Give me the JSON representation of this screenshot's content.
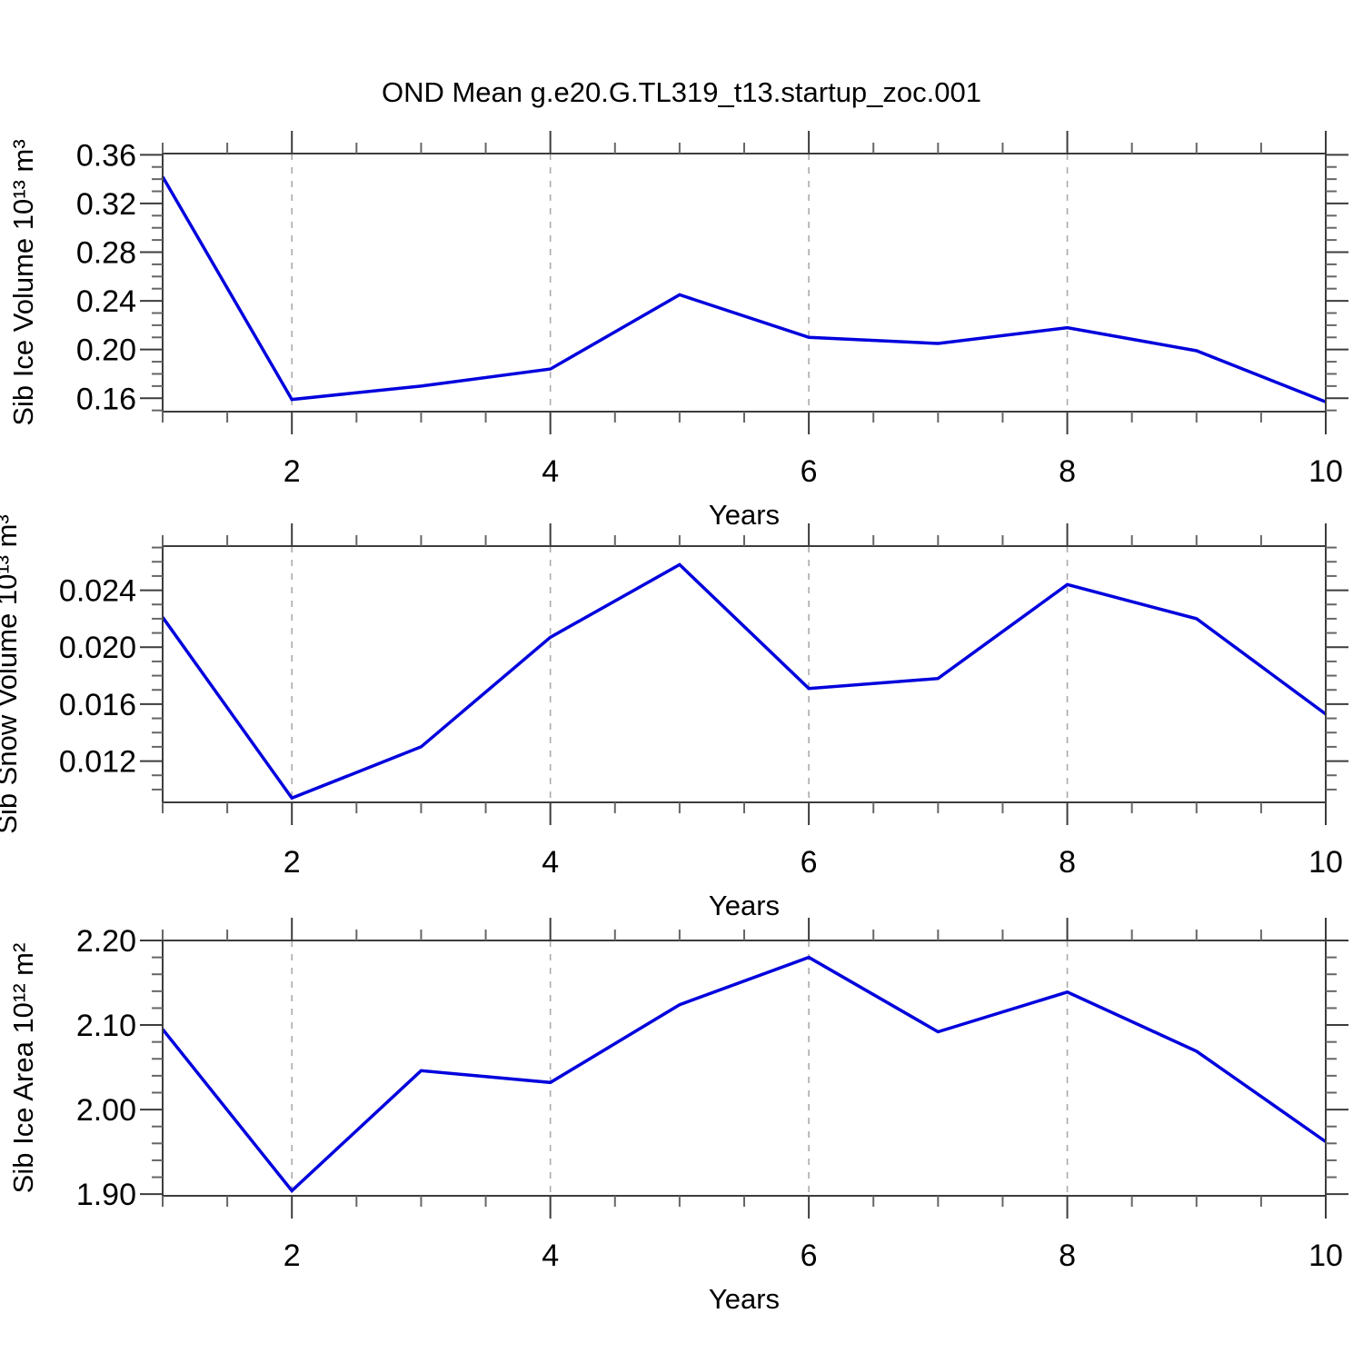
{
  "title": "OND Mean g.e20.G.TL319_t13.startup_zoc.001",
  "colors": {
    "line": "#0000DD",
    "grid": "#ABABAB",
    "frame": "#3C3C3C",
    "tick_major": "#3C3C3C",
    "tick_minor": "#666666",
    "text": "#000000",
    "background": "#FFFFFF"
  },
  "chart_data": [
    {
      "type": "line",
      "ylabel": "Sib Ice Volume 10¹³ m³",
      "xlabel": "Years",
      "x": [
        1,
        2,
        3,
        4,
        5,
        6,
        7,
        8,
        9,
        10
      ],
      "values": [
        0.342,
        0.159,
        0.17,
        0.184,
        0.245,
        0.21,
        0.205,
        0.218,
        0.199,
        0.157
      ],
      "xlim": [
        1,
        10
      ],
      "ylim": [
        0.149,
        0.361
      ],
      "xticks": [
        2,
        4,
        6,
        8,
        10
      ],
      "xtick_labels": [
        "2",
        "4",
        "6",
        "8",
        "10"
      ],
      "xminor_step": 0.5,
      "yticks": [
        0.16,
        0.2,
        0.24,
        0.28,
        0.32,
        0.36
      ],
      "ytick_labels": [
        "0.16",
        "0.20",
        "0.24",
        "0.28",
        "0.32",
        "0.36"
      ],
      "yminor_step": 0.01,
      "grid_x": [
        2,
        4,
        6,
        8
      ],
      "grid_style": "dashed",
      "legend": "none"
    },
    {
      "type": "line",
      "ylabel": "Sib Snow Volume 10¹³ m³",
      "xlabel": "Years",
      "x": [
        1,
        2,
        3,
        4,
        5,
        6,
        7,
        8,
        9,
        10
      ],
      "values": [
        0.0221,
        0.0094,
        0.013,
        0.0207,
        0.0258,
        0.0171,
        0.0178,
        0.0244,
        0.022,
        0.0153
      ],
      "xlim": [
        1,
        10
      ],
      "ylim": [
        0.0091,
        0.0271
      ],
      "xticks": [
        2,
        4,
        6,
        8,
        10
      ],
      "xtick_labels": [
        "2",
        "4",
        "6",
        "8",
        "10"
      ],
      "xminor_step": 0.5,
      "yticks": [
        0.012,
        0.016,
        0.02,
        0.024
      ],
      "ytick_labels": [
        "0.012",
        "0.016",
        "0.020",
        "0.024"
      ],
      "yminor_step": 0.001,
      "grid_x": [
        2,
        4,
        6,
        8
      ],
      "grid_style": "dashed",
      "legend": "none"
    },
    {
      "type": "line",
      "ylabel": "Sib Ice Area 10¹² m²",
      "xlabel": "Years",
      "x": [
        1,
        2,
        3,
        4,
        5,
        6,
        7,
        8,
        9,
        10
      ],
      "values": [
        2.095,
        1.904,
        2.046,
        2.032,
        2.124,
        2.18,
        2.092,
        2.139,
        2.069,
        1.962
      ],
      "xlim": [
        1,
        10
      ],
      "ylim": [
        1.898,
        2.2
      ],
      "xticks": [
        2,
        4,
        6,
        8,
        10
      ],
      "xtick_labels": [
        "2",
        "4",
        "6",
        "8",
        "10"
      ],
      "xminor_step": 0.5,
      "yticks": [
        1.9,
        2.0,
        2.1,
        2.2
      ],
      "ytick_labels": [
        "1.90",
        "2.00",
        "2.10",
        "2.20"
      ],
      "yminor_step": 0.02,
      "grid_x": [
        2,
        4,
        6,
        8
      ],
      "grid_style": "dashed",
      "legend": "none"
    }
  ]
}
